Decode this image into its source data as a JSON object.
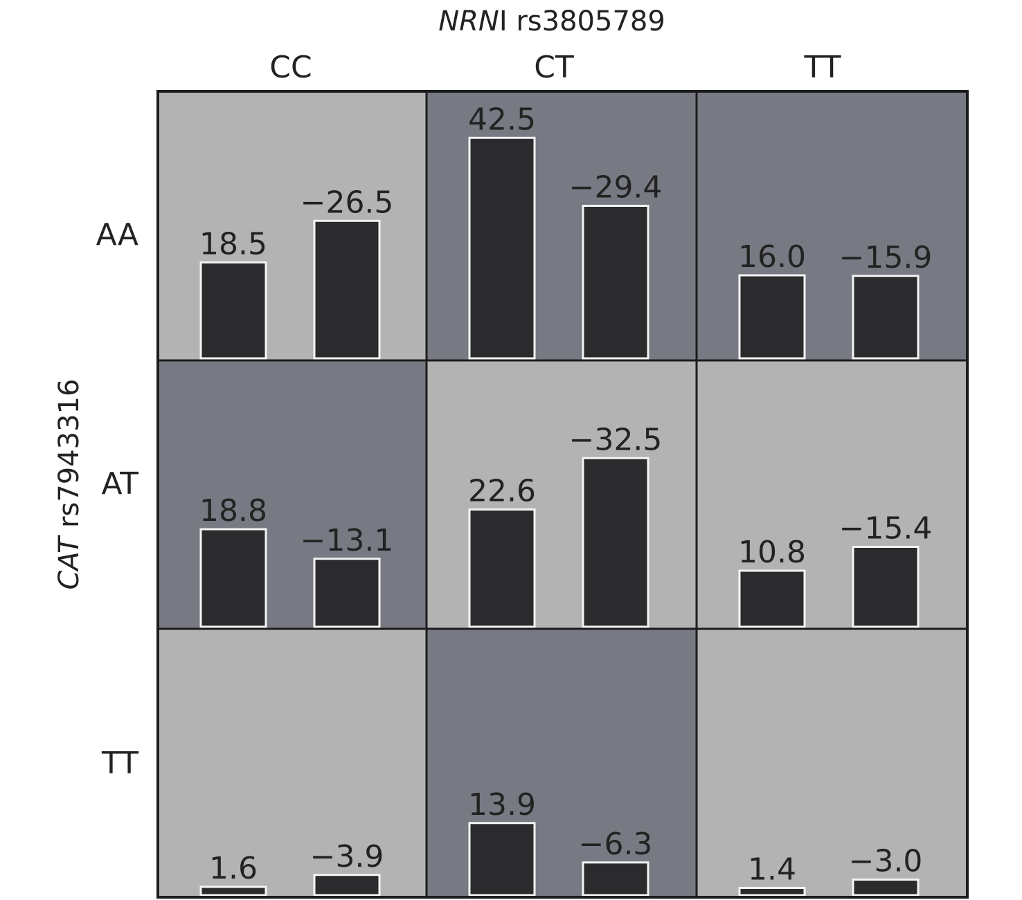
{
  "chart_data": {
    "type": "bar",
    "col_title_italic": "NRN",
    "col_title_rest": "I rs3805789",
    "row_title_italic": "CAT",
    "row_title_rest": " rs7943316",
    "col_labels": [
      "CC",
      "CT",
      "TT"
    ],
    "row_labels": [
      "AA",
      "AT",
      "TT"
    ],
    "colors": {
      "high_risk": "#777a82",
      "low_risk": "#b3b3b3",
      "bar": "#2b2b2d",
      "border": "#1c1c1c"
    },
    "cells": [
      {
        "row": "AA",
        "col": "CC",
        "shade": "low_risk",
        "values": [
          18.5,
          -26.5
        ],
        "labels": [
          "18.5",
          "−26.5"
        ]
      },
      {
        "row": "AA",
        "col": "CT",
        "shade": "high_risk",
        "values": [
          42.5,
          -29.4
        ],
        "labels": [
          "42.5",
          "−29.4"
        ]
      },
      {
        "row": "AA",
        "col": "TT",
        "shade": "high_risk",
        "values": [
          16.0,
          -15.9
        ],
        "labels": [
          "16.0",
          "−15.9"
        ]
      },
      {
        "row": "AT",
        "col": "CC",
        "shade": "high_risk",
        "values": [
          18.8,
          -13.1
        ],
        "labels": [
          "18.8",
          "−13.1"
        ]
      },
      {
        "row": "AT",
        "col": "CT",
        "shade": "low_risk",
        "values": [
          22.6,
          -32.5
        ],
        "labels": [
          "22.6",
          "−32.5"
        ]
      },
      {
        "row": "AT",
        "col": "TT",
        "shade": "low_risk",
        "values": [
          10.8,
          -15.4
        ],
        "labels": [
          "10.8",
          "−15.4"
        ]
      },
      {
        "row": "TT",
        "col": "CC",
        "shade": "low_risk",
        "values": [
          1.6,
          -3.9
        ],
        "labels": [
          "1.6",
          "−3.9"
        ]
      },
      {
        "row": "TT",
        "col": "CT",
        "shade": "high_risk",
        "values": [
          13.9,
          -6.3
        ],
        "labels": [
          "13.9",
          "−6.3"
        ]
      },
      {
        "row": "TT",
        "col": "TT",
        "shade": "low_risk",
        "values": [
          1.4,
          -3.0
        ],
        "labels": [
          "1.4",
          "−3.0"
        ]
      }
    ]
  }
}
